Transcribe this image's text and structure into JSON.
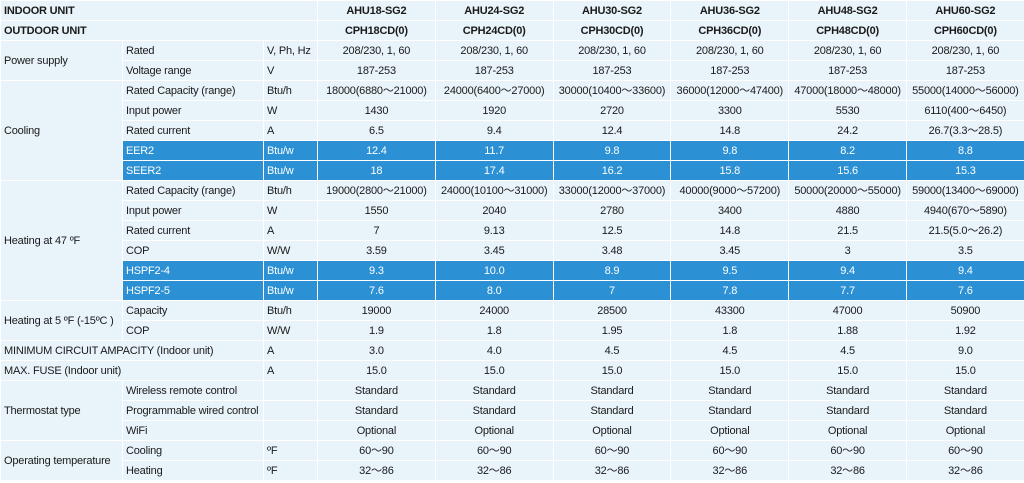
{
  "header": {
    "indoor_label": "INDOOR UNIT",
    "outdoor_label": "OUTDOOR UNIT",
    "indoor_models": [
      "AHU18-SG2",
      "AHU24-SG2",
      "AHU30-SG2",
      "AHU36-SG2",
      "AHU48-SG2",
      "AHU60-SG2"
    ],
    "outdoor_models": [
      "CPH18CD(0)",
      "CPH24CD(0)",
      "CPH30CD(0)",
      "CPH36CD(0)",
      "CPH48CD(0)",
      "CPH60CD(0)"
    ]
  },
  "groups": {
    "power_supply": "Power supply",
    "cooling": "Cooling",
    "heating47": "Heating at 47 ºF",
    "heating5": "Heating at 5 ºF  (-15ºC )",
    "thermostat": "Thermostat type",
    "optemp": "Operating temperature"
  },
  "colors": {
    "header_bg": "#c9e4f4",
    "row_bg": "#e8f3fa",
    "highlight_bg": "#2b90d4",
    "highlight_text": "#ffffff"
  },
  "rows": [
    {
      "label": "Rated",
      "unit": "V, Ph, Hz",
      "values": [
        "208/230, 1, 60",
        "208/230, 1, 60",
        "208/230, 1, 60",
        "208/230, 1, 60",
        "208/230, 1, 60",
        "208/230, 1, 60"
      ]
    },
    {
      "label": "Voltage range",
      "unit": "V",
      "values": [
        "187-253",
        "187-253",
        "187-253",
        "187-253",
        "187-253",
        "187-253"
      ]
    },
    {
      "label": "Rated Capacity (range)",
      "unit": "Btu/h",
      "values": [
        "18000(6880～21000)",
        "24000(6400～27000)",
        "30000(10400～33600)",
        "36000(12000～47400)",
        "47000(18000～48000)",
        "55000(14000～56000)"
      ]
    },
    {
      "label": "Input power",
      "unit": "W",
      "values": [
        "1430",
        "1920",
        "2720",
        "3300",
        "5530",
        "6110(400～6450)"
      ]
    },
    {
      "label": "Rated current",
      "unit": "A",
      "values": [
        "6.5",
        "9.4",
        "12.4",
        "14.8",
        "24.2",
        "26.7(3.3～28.5)"
      ]
    },
    {
      "label": "EER2",
      "unit": "Btu/w",
      "values": [
        "12.4",
        "11.7",
        "9.8",
        "9.8",
        "8.2",
        "8.8"
      ]
    },
    {
      "label": "SEER2",
      "unit": "Btu/w",
      "values": [
        "18",
        "17.4",
        "16.2",
        "15.8",
        "15.6",
        "15.3"
      ]
    },
    {
      "label": "Rated Capacity (range)",
      "unit": "Btu/h",
      "values": [
        "19000(2800～21000)",
        "24000(10100～31000)",
        "33000(12000～37000)",
        "40000(9000～57200)",
        "50000(20000～55000)",
        "59000(13400～69000)"
      ]
    },
    {
      "label": "Input power",
      "unit": "W",
      "values": [
        "1550",
        "2040",
        "2780",
        "3400",
        "4880",
        "4940(670～5890)"
      ]
    },
    {
      "label": "Rated current",
      "unit": "A",
      "values": [
        "7",
        "9.13",
        "12.5",
        "14.8",
        "21.5",
        "21.5(5.0～26.2)"
      ]
    },
    {
      "label": "COP",
      "unit": "W/W",
      "values": [
        "3.59",
        "3.45",
        "3.48",
        "3.45",
        "3",
        "3.5"
      ]
    },
    {
      "label": "HSPF2-4",
      "unit": "Btu/w",
      "values": [
        "9.3",
        "10.0",
        "8.9",
        "9.5",
        "9.4",
        "9.4"
      ]
    },
    {
      "label": "HSPF2-5",
      "unit": "Btu/w",
      "values": [
        "7.6",
        "8.0",
        "7",
        "7.8",
        "7.7",
        "7.6"
      ]
    },
    {
      "label": "Capacity",
      "unit": "Btu/h",
      "values": [
        "19000",
        "24000",
        "28500",
        "43300",
        "47000",
        "50900"
      ]
    },
    {
      "label": "COP",
      "unit": "W/W",
      "values": [
        "1.9",
        "1.8",
        "1.95",
        "1.8",
        "1.88",
        "1.92"
      ]
    },
    {
      "label": "MINIMUM CIRCUIT AMPACITY (Indoor unit)",
      "unit": "A",
      "values": [
        "3.0",
        "4.0",
        "4.5",
        "4.5",
        "4.5",
        "9.0"
      ]
    },
    {
      "label": "MAX. FUSE (Indoor unit)",
      "unit": "A",
      "values": [
        "15.0",
        "15.0",
        "15.0",
        "15.0",
        "15.0",
        "15.0"
      ]
    },
    {
      "label": "Wireless remote control",
      "unit": "",
      "values": [
        "Standard",
        "Standard",
        "Standard",
        "Standard",
        "Standard",
        "Standard"
      ]
    },
    {
      "label": "Programmable wired control",
      "unit": "",
      "values": [
        "Standard",
        "Standard",
        "Standard",
        "Standard",
        "Standard",
        "Standard"
      ]
    },
    {
      "label": "WiFi",
      "unit": "",
      "values": [
        "Optional",
        "Optional",
        "Optional",
        "Optional",
        "Optional",
        "Optional"
      ]
    },
    {
      "label": "Cooling",
      "unit": "ºF",
      "values": [
        "60～90",
        "60～90",
        "60～90",
        "60～90",
        "60～90",
        "60～90"
      ]
    },
    {
      "label": "Heating",
      "unit": "ºF",
      "values": [
        "32～86",
        "32～86",
        "32～86",
        "32～86",
        "32～86",
        "32～86"
      ]
    }
  ]
}
